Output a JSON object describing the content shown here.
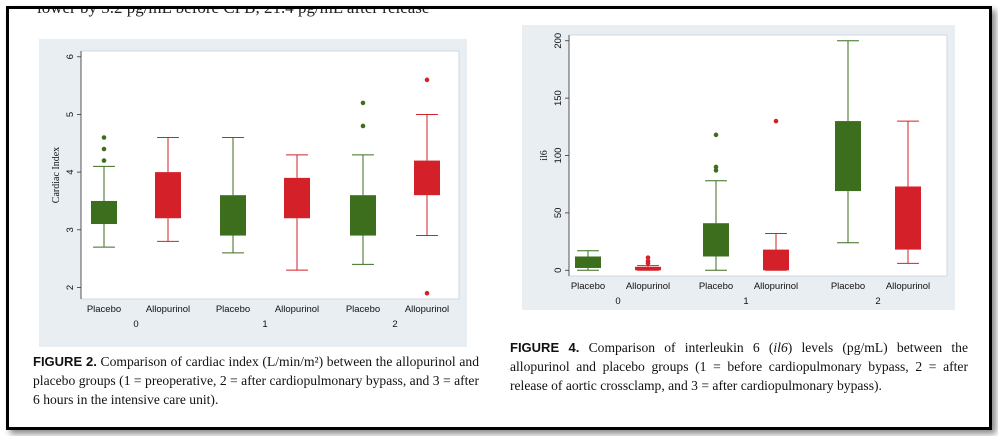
{
  "header_snippet": "lower by 3.2 pg/mL before CPB, 21.4 pg/mL after release",
  "colors": {
    "placebo": "#3c6e1e",
    "allopurinol": "#d42129",
    "background": "#e9eef2"
  },
  "figure2": {
    "caption_label": "FIGURE 2.",
    "caption_text": " Comparison of cardiac index (L/min/m²) between the allopurinol and placebo groups (1 = preoperative, 2 = after cardiopulmonary bypass, and 3 = after 6 hours in the intensive care unit).",
    "chart_data": {
      "type": "box",
      "ylabel": "Cardiac Index",
      "ylim": [
        1.8,
        6.1
      ],
      "yticks": [
        "2",
        "3",
        "4",
        "5",
        "6"
      ],
      "groups": [
        "0",
        "1",
        "2"
      ],
      "series_labels": [
        "Placebo",
        "Allopurinol"
      ],
      "boxes": [
        {
          "group": "0",
          "series": "Placebo",
          "whisker_low": 2.7,
          "q1": 3.1,
          "median": 3.3,
          "q3": 3.5,
          "whisker_high": 4.1,
          "outliers": [
            4.2,
            4.4,
            4.6
          ]
        },
        {
          "group": "0",
          "series": "Allopurinol",
          "whisker_low": 2.8,
          "q1": 3.2,
          "median": 3.6,
          "q3": 4.0,
          "whisker_high": 4.6,
          "outliers": []
        },
        {
          "group": "1",
          "series": "Placebo",
          "whisker_low": 2.6,
          "q1": 2.9,
          "median": 3.2,
          "q3": 3.6,
          "whisker_high": 4.6,
          "outliers": []
        },
        {
          "group": "1",
          "series": "Allopurinol",
          "whisker_low": 2.3,
          "q1": 3.2,
          "median": 3.5,
          "q3": 3.9,
          "whisker_high": 4.3,
          "outliers": []
        },
        {
          "group": "2",
          "series": "Placebo",
          "whisker_low": 2.4,
          "q1": 2.9,
          "median": 3.3,
          "q3": 3.6,
          "whisker_high": 4.3,
          "outliers": [
            4.8,
            5.2
          ]
        },
        {
          "group": "2",
          "series": "Allopurinol",
          "whisker_low": 2.9,
          "q1": 3.6,
          "median": 3.9,
          "q3": 4.2,
          "whisker_high": 5.0,
          "outliers": [
            5.6,
            1.9
          ]
        }
      ]
    }
  },
  "figure4": {
    "caption_label": "FIGURE 4.",
    "caption_text_pre": " Comparison of interleukin 6 (",
    "caption_italic": "il6",
    "caption_text_post": ") levels (pg/mL) between the allopurinol and placebo groups (1 = before cardiopulmonary bypass, 2 = after release of aortic crossclamp, and 3 = after cardiopulmonary bypass).",
    "chart_data": {
      "type": "box",
      "ylabel": "il6",
      "ylim": [
        -5,
        205
      ],
      "yticks": [
        "0",
        "50",
        "100",
        "150",
        "200"
      ],
      "groups": [
        "0",
        "1",
        "2"
      ],
      "series_labels": [
        "Placebo",
        "Allopurinol"
      ],
      "boxes": [
        {
          "group": "0",
          "series": "Placebo",
          "whisker_low": 0,
          "q1": 2,
          "median": 6,
          "q3": 12,
          "whisker_high": 17,
          "outliers": []
        },
        {
          "group": "0",
          "series": "Allopurinol",
          "whisker_low": 0,
          "q1": 0,
          "median": 1.5,
          "q3": 3,
          "whisker_high": 4,
          "outliers": [
            6,
            8,
            11
          ]
        },
        {
          "group": "1",
          "series": "Placebo",
          "whisker_low": 0,
          "q1": 12,
          "median": 25,
          "q3": 41,
          "whisker_high": 78,
          "outliers": [
            87,
            90,
            118
          ]
        },
        {
          "group": "1",
          "series": "Allopurinol",
          "whisker_low": 0,
          "q1": 0,
          "median": 8,
          "q3": 18,
          "whisker_high": 32,
          "outliers": [
            130
          ]
        },
        {
          "group": "2",
          "series": "Placebo",
          "whisker_low": 24,
          "q1": 69,
          "median": 100,
          "q3": 130,
          "whisker_high": 200,
          "outliers": []
        },
        {
          "group": "2",
          "series": "Allopurinol",
          "whisker_low": 6,
          "q1": 18,
          "median": 45,
          "q3": 73,
          "whisker_high": 130,
          "outliers": []
        }
      ]
    }
  }
}
